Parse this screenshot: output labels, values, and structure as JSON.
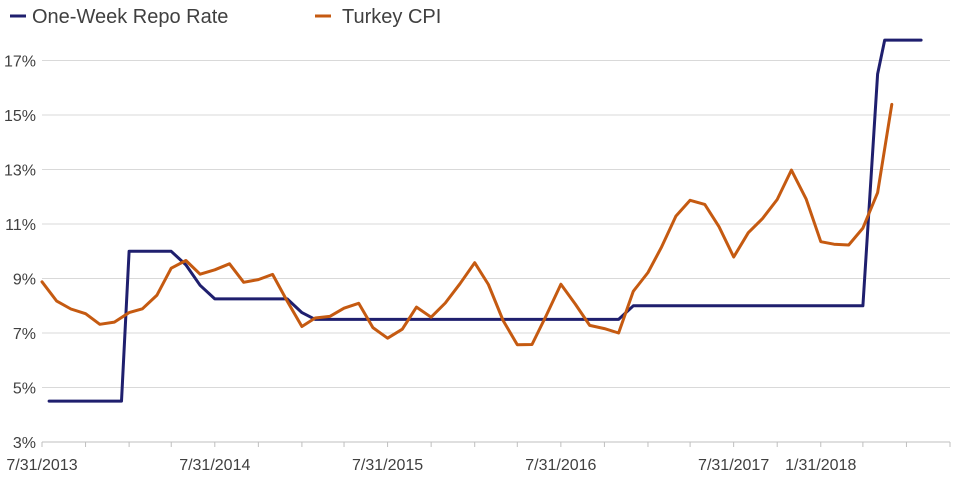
{
  "chart_data": {
    "type": "line",
    "title": "",
    "xlabel": "",
    "ylabel": "",
    "ylim": [
      3,
      17.9
    ],
    "xlim": [
      "2013-07-31",
      "2018-10-31"
    ],
    "grid": true,
    "legend": "top-left",
    "y_ticks": [
      {
        "value": 3,
        "label": "3%"
      },
      {
        "value": 5,
        "label": "5%"
      },
      {
        "value": 7,
        "label": "7%"
      },
      {
        "value": 9,
        "label": "9%"
      },
      {
        "value": 11,
        "label": "11%"
      },
      {
        "value": 13,
        "label": "13%"
      },
      {
        "value": 15,
        "label": "15%"
      },
      {
        "value": 17,
        "label": "17%"
      }
    ],
    "x_ticks": [
      {
        "value": "2013-07-31",
        "label": "7/31/2013"
      },
      {
        "value": "2014-07-31",
        "label": "7/31/2014"
      },
      {
        "value": "2015-07-31",
        "label": "7/31/2015"
      },
      {
        "value": "2016-07-31",
        "label": "7/31/2016"
      },
      {
        "value": "2017-07-31",
        "label": "7/31/2017"
      },
      {
        "value": "2018-01-31",
        "label": "1/31/2018"
      }
    ],
    "series": [
      {
        "name": "One-Week Repo Rate",
        "color": "#1F1F6E",
        "points": [
          [
            "2013-08-15",
            4.5
          ],
          [
            "2013-09-15",
            4.5
          ],
          [
            "2013-10-15",
            4.5
          ],
          [
            "2013-11-15",
            4.5
          ],
          [
            "2013-12-15",
            4.5
          ],
          [
            "2014-01-15",
            4.5
          ],
          [
            "2014-01-31",
            10.0
          ],
          [
            "2014-02-28",
            10.0
          ],
          [
            "2014-03-31",
            10.0
          ],
          [
            "2014-04-30",
            10.0
          ],
          [
            "2014-05-31",
            9.5
          ],
          [
            "2014-06-30",
            8.75
          ],
          [
            "2014-07-31",
            8.25
          ],
          [
            "2014-08-31",
            8.25
          ],
          [
            "2014-09-30",
            8.25
          ],
          [
            "2014-10-31",
            8.25
          ],
          [
            "2014-11-30",
            8.25
          ],
          [
            "2014-12-31",
            8.25
          ],
          [
            "2015-01-31",
            7.75
          ],
          [
            "2015-02-28",
            7.5
          ],
          [
            "2015-03-31",
            7.5
          ],
          [
            "2015-07-31",
            7.5
          ],
          [
            "2016-01-31",
            7.5
          ],
          [
            "2016-07-31",
            7.5
          ],
          [
            "2016-11-30",
            7.5
          ],
          [
            "2016-12-31",
            8.0
          ],
          [
            "2017-07-31",
            8.0
          ],
          [
            "2018-01-31",
            8.0
          ],
          [
            "2018-04-30",
            8.0
          ],
          [
            "2018-05-31",
            16.5
          ],
          [
            "2018-06-15",
            17.75
          ],
          [
            "2018-07-31",
            17.75
          ],
          [
            "2018-08-31",
            17.75
          ]
        ]
      },
      {
        "name": "Turkey CPI",
        "color": "#C55A11",
        "points": [
          [
            "2013-07-31",
            8.88
          ],
          [
            "2013-08-31",
            8.17
          ],
          [
            "2013-09-30",
            7.88
          ],
          [
            "2013-10-31",
            7.71
          ],
          [
            "2013-11-30",
            7.32
          ],
          [
            "2013-12-31",
            7.4
          ],
          [
            "2014-01-31",
            7.75
          ],
          [
            "2014-02-28",
            7.89
          ],
          [
            "2014-03-31",
            8.39
          ],
          [
            "2014-04-30",
            9.38
          ],
          [
            "2014-05-31",
            9.66
          ],
          [
            "2014-06-30",
            9.16
          ],
          [
            "2014-07-31",
            9.32
          ],
          [
            "2014-08-31",
            9.54
          ],
          [
            "2014-09-30",
            8.86
          ],
          [
            "2014-10-31",
            8.96
          ],
          [
            "2014-11-30",
            9.15
          ],
          [
            "2014-12-31",
            8.17
          ],
          [
            "2015-01-31",
            7.24
          ],
          [
            "2015-02-28",
            7.55
          ],
          [
            "2015-03-31",
            7.61
          ],
          [
            "2015-04-30",
            7.91
          ],
          [
            "2015-05-31",
            8.09
          ],
          [
            "2015-06-30",
            7.2
          ],
          [
            "2015-07-31",
            6.81
          ],
          [
            "2015-08-31",
            7.14
          ],
          [
            "2015-09-30",
            7.95
          ],
          [
            "2015-10-31",
            7.58
          ],
          [
            "2015-11-30",
            8.1
          ],
          [
            "2015-12-31",
            8.81
          ],
          [
            "2016-01-31",
            9.58
          ],
          [
            "2016-02-29",
            8.78
          ],
          [
            "2016-03-31",
            7.46
          ],
          [
            "2016-04-30",
            6.57
          ],
          [
            "2016-05-31",
            6.58
          ],
          [
            "2016-06-30",
            7.64
          ],
          [
            "2016-07-31",
            8.79
          ],
          [
            "2016-08-31",
            8.05
          ],
          [
            "2016-09-30",
            7.28
          ],
          [
            "2016-10-31",
            7.16
          ],
          [
            "2016-11-30",
            7.0
          ],
          [
            "2016-12-31",
            8.53
          ],
          [
            "2017-01-31",
            9.22
          ],
          [
            "2017-02-28",
            10.13
          ],
          [
            "2017-03-31",
            11.29
          ],
          [
            "2017-04-30",
            11.87
          ],
          [
            "2017-05-31",
            11.72
          ],
          [
            "2017-06-30",
            10.9
          ],
          [
            "2017-07-31",
            9.79
          ],
          [
            "2017-08-31",
            10.68
          ],
          [
            "2017-09-30",
            11.2
          ],
          [
            "2017-10-31",
            11.9
          ],
          [
            "2017-11-30",
            12.98
          ],
          [
            "2017-12-31",
            11.92
          ],
          [
            "2018-01-31",
            10.35
          ],
          [
            "2018-02-28",
            10.26
          ],
          [
            "2018-03-31",
            10.23
          ],
          [
            "2018-04-30",
            10.85
          ],
          [
            "2018-05-31",
            12.15
          ],
          [
            "2018-06-30",
            15.39
          ]
        ]
      }
    ]
  }
}
